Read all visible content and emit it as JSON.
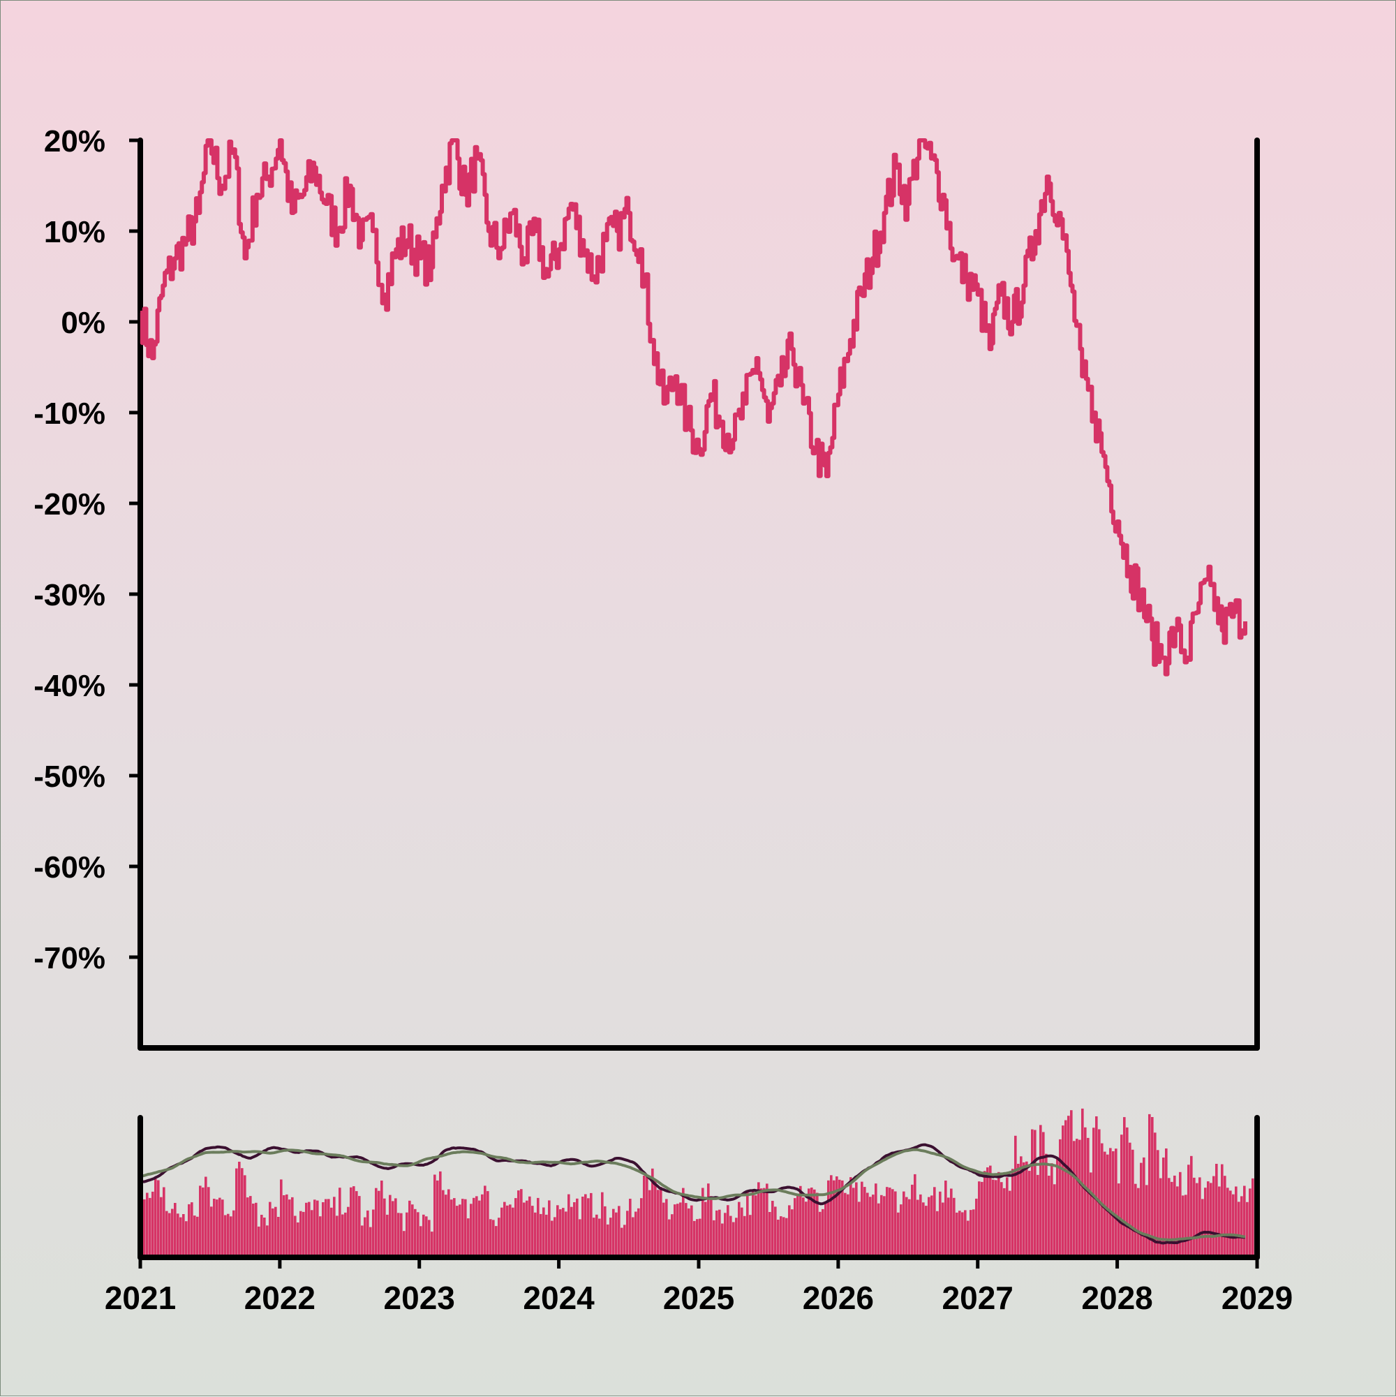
{
  "chart_data": {
    "type": "line",
    "title": "",
    "xlabel": "",
    "ylabel": "",
    "x_tick_labels": [
      "2021",
      "2022",
      "2023",
      "2024",
      "2025",
      "2026",
      "2027",
      "2028",
      "2029"
    ],
    "y_tick_labels": [
      "20%",
      "10%",
      "0%",
      "-10%",
      "-20%",
      "-30%",
      "-40%",
      "-50%",
      "-60%",
      "-70%"
    ],
    "xlim": [
      "2021-01-01",
      "2029-01-01"
    ],
    "ylim": [
      -80,
      20
    ],
    "grid": false,
    "series": [
      {
        "color": "#d63366",
        "points": [
          [
            "2021-01-01",
            1
          ],
          [
            "2021-02-01",
            -4
          ],
          [
            "2021-03-01",
            4
          ],
          [
            "2021-04-01",
            7
          ],
          [
            "2021-05-01",
            9
          ],
          [
            "2021-06-01",
            12
          ],
          [
            "2021-07-01",
            20
          ],
          [
            "2021-08-01",
            15
          ],
          [
            "2021-09-01",
            19
          ],
          [
            "2021-10-01",
            7
          ],
          [
            "2021-11-01",
            14
          ],
          [
            "2021-12-01",
            16
          ],
          [
            "2022-01-01",
            20
          ],
          [
            "2022-02-01",
            12
          ],
          [
            "2022-03-01",
            14
          ],
          [
            "2022-04-01",
            17
          ],
          [
            "2022-05-01",
            13
          ],
          [
            "2022-06-01",
            10
          ],
          [
            "2022-07-01",
            15
          ],
          [
            "2022-08-01",
            9
          ],
          [
            "2022-09-01",
            10
          ],
          [
            "2022-10-01",
            3
          ],
          [
            "2022-11-01",
            8
          ],
          [
            "2022-12-01",
            9
          ],
          [
            "2023-01-01",
            7
          ],
          [
            "2023-02-01",
            6
          ],
          [
            "2023-03-01",
            15
          ],
          [
            "2023-04-01",
            20
          ],
          [
            "2023-05-01",
            14
          ],
          [
            "2023-06-01",
            18
          ],
          [
            "2023-07-01",
            10
          ],
          [
            "2023-08-01",
            8
          ],
          [
            "2023-09-01",
            12
          ],
          [
            "2023-10-01",
            7
          ],
          [
            "2023-11-01",
            10
          ],
          [
            "2023-12-01",
            5
          ],
          [
            "2024-01-01",
            8
          ],
          [
            "2024-02-01",
            13
          ],
          [
            "2024-03-01",
            9
          ],
          [
            "2024-04-01",
            5
          ],
          [
            "2024-05-01",
            9
          ],
          [
            "2024-06-01",
            10
          ],
          [
            "2024-07-01",
            12
          ],
          [
            "2024-08-01",
            8
          ],
          [
            "2024-09-01",
            -2
          ],
          [
            "2024-10-01",
            -9
          ],
          [
            "2024-11-01",
            -6
          ],
          [
            "2024-12-01",
            -11
          ],
          [
            "2025-01-01",
            -14
          ],
          [
            "2025-02-01",
            -8
          ],
          [
            "2025-03-01",
            -11
          ],
          [
            "2025-04-01",
            -13
          ],
          [
            "2025-05-01",
            -9
          ],
          [
            "2025-06-01",
            -4
          ],
          [
            "2025-07-01",
            -11
          ],
          [
            "2025-08-01",
            -7
          ],
          [
            "2025-09-01",
            -3
          ],
          [
            "2025-10-01",
            -9
          ],
          [
            "2025-11-01",
            -14
          ],
          [
            "2025-12-01",
            -17
          ],
          [
            "2026-01-01",
            -8
          ],
          [
            "2026-02-01",
            -2
          ],
          [
            "2026-03-01",
            3
          ],
          [
            "2026-04-01",
            7
          ],
          [
            "2026-05-01",
            12
          ],
          [
            "2026-06-01",
            17
          ],
          [
            "2026-07-01",
            13
          ],
          [
            "2026-08-01",
            20
          ],
          [
            "2026-09-01",
            18
          ],
          [
            "2026-10-01",
            14
          ],
          [
            "2026-11-01",
            7
          ],
          [
            "2026-12-01",
            5
          ],
          [
            "2027-01-01",
            3
          ],
          [
            "2027-02-01",
            -3
          ],
          [
            "2027-03-01",
            3
          ],
          [
            "2027-04-01",
            0
          ],
          [
            "2027-05-01",
            4
          ],
          [
            "2027-06-01",
            10
          ],
          [
            "2027-07-01",
            16
          ],
          [
            "2027-08-01",
            12
          ],
          [
            "2027-09-01",
            4
          ],
          [
            "2027-10-01",
            -6
          ],
          [
            "2027-11-01",
            -10
          ],
          [
            "2027-12-01",
            -16
          ],
          [
            "2028-01-01",
            -22
          ],
          [
            "2028-02-01",
            -27
          ],
          [
            "2028-03-01",
            -30
          ],
          [
            "2028-04-01",
            -35
          ],
          [
            "2028-05-01",
            -37
          ],
          [
            "2028-06-01",
            -34
          ],
          [
            "2028-07-01",
            -37
          ],
          [
            "2028-08-01",
            -31
          ],
          [
            "2028-09-01",
            -29
          ],
          [
            "2028-10-01",
            -34
          ],
          [
            "2028-11-01",
            -32
          ],
          [
            "2028-12-01",
            -33
          ]
        ]
      }
    ],
    "navigator": {
      "bar_color": "#d63366",
      "line_colors": [
        "#3b1030",
        "#6b7d5c"
      ],
      "volume_bars": true
    }
  }
}
